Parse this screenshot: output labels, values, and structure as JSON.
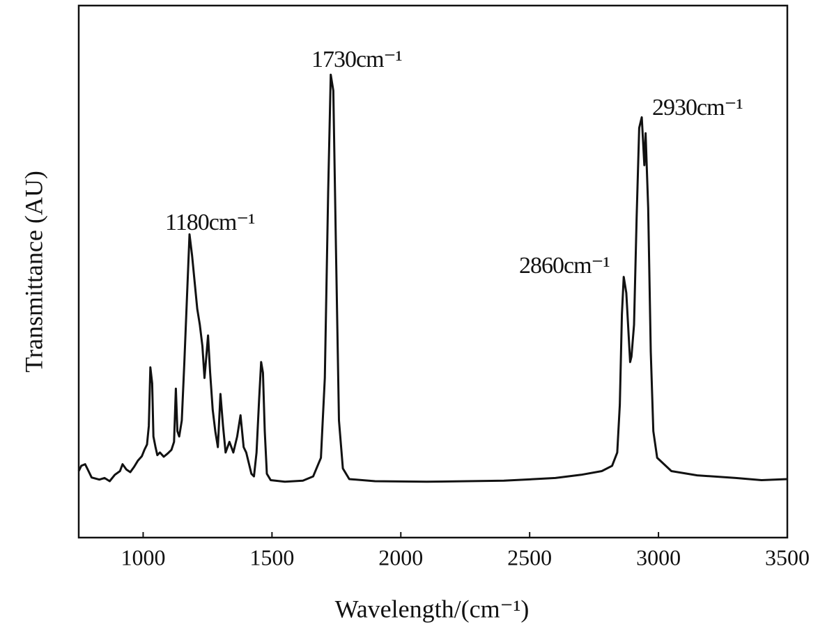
{
  "chart_data": {
    "type": "line",
    "x_label": "Wavelength/(cm⁻¹)",
    "y_label": "Transmittance (AU)",
    "annotations": [
      "1180cm⁻¹",
      "1730cm⁻¹",
      "2860cm⁻¹",
      "2930cm⁻¹"
    ],
    "xlim": [
      750,
      3500
    ],
    "xticks": [
      1000,
      1500,
      2000,
      2500,
      3000,
      3500
    ],
    "ylim": [
      0,
      100
    ],
    "series": [
      {
        "color": "#111111",
        "x": [
          750,
          760,
          775,
          790,
          800,
          830,
          850,
          870,
          890,
          910,
          920,
          935,
          950,
          965,
          980,
          995,
          1005,
          1015,
          1022,
          1028,
          1035,
          1040,
          1048,
          1055,
          1065,
          1080,
          1095,
          1110,
          1120,
          1127,
          1133,
          1140,
          1150,
          1160,
          1170,
          1180,
          1190,
          1200,
          1210,
          1220,
          1230,
          1238,
          1245,
          1252,
          1260,
          1270,
          1280,
          1290,
          1300,
          1310,
          1320,
          1335,
          1350,
          1365,
          1378,
          1390,
          1400,
          1420,
          1430,
          1440,
          1450,
          1458,
          1465,
          1472,
          1480,
          1495,
          1550,
          1620,
          1660,
          1690,
          1705,
          1718,
          1728,
          1738,
          1748,
          1760,
          1775,
          1800,
          1900,
          2100,
          2400,
          2600,
          2700,
          2780,
          2820,
          2840,
          2850,
          2858,
          2865,
          2875,
          2890,
          2895,
          2905,
          2915,
          2925,
          2935,
          2945,
          2950,
          2960,
          2970,
          2980,
          2995,
          3050,
          3150,
          3300,
          3400,
          3500
        ],
        "values": [
          12.5,
          13.5,
          13.8,
          12.3,
          11.3,
          10.9,
          11.2,
          10.6,
          11.8,
          12.5,
          13.8,
          12.8,
          12.3,
          13.3,
          14.5,
          15.3,
          16.5,
          17.5,
          21,
          32,
          29,
          19,
          17,
          15.5,
          16,
          15.2,
          15.8,
          16.5,
          18,
          28,
          20,
          19,
          22,
          33,
          45,
          57,
          53,
          48,
          43,
          40,
          36,
          30,
          34,
          38,
          31,
          24,
          20,
          17,
          27,
          21,
          16,
          18,
          16,
          19,
          23,
          17,
          16,
          12,
          11.5,
          16,
          26,
          33,
          31,
          20,
          12,
          10.8,
          10.5,
          10.7,
          11.5,
          15,
          30,
          65,
          87,
          84,
          55,
          22,
          13,
          11,
          10.6,
          10.5,
          10.7,
          11.2,
          11.8,
          12.5,
          13.5,
          16,
          25,
          42,
          49,
          46,
          33,
          34,
          40,
          60,
          77,
          79,
          70,
          76,
          62,
          35,
          20,
          15,
          12.5,
          11.7,
          11.2,
          10.8,
          11
        ]
      }
    ]
  }
}
